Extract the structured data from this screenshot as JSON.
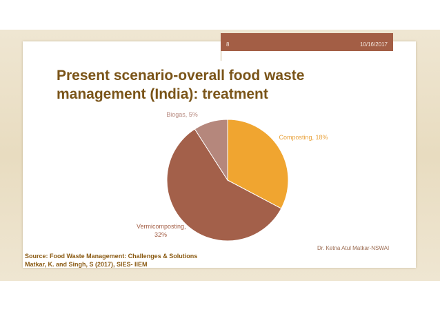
{
  "slide": {
    "number": "8",
    "date": "10/16/2017",
    "title": "Present scenario-overall food waste management (India): treatment",
    "author": "Dr. Ketna Atul Matkar-NSWAI",
    "source_line1": "Source: Food Waste Management: Challenges & Solutions",
    "source_line2": "Matkar, K. and Singh, S (2017), SIES- IIEM"
  },
  "colors": {
    "accent_bar": "#a35e45",
    "title": "#7a5418",
    "composting": "#f0a530",
    "vermicomposting": "#a3604a",
    "biogas": "#b5877c"
  },
  "chart_data": {
    "type": "pie",
    "title": "",
    "slices": [
      {
        "label": "Composting, 18%",
        "value": 18,
        "color": "#f0a530"
      },
      {
        "label": "Vermicomposting, 32%",
        "value": 32,
        "color": "#a3604a"
      },
      {
        "label": "Biogas, 5%",
        "value": 5,
        "color": "#b5877c"
      }
    ],
    "start_angle_deg": 0,
    "direction": "clockwise"
  }
}
